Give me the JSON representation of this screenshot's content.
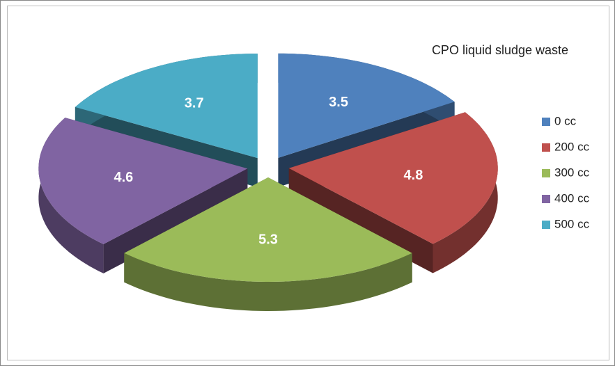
{
  "chart_data": {
    "type": "pie",
    "title": "CPO liquid sludge waste",
    "categories": [
      "0 cc",
      "200 cc",
      "300 cc",
      "400 cc",
      "500 cc"
    ],
    "values": [
      3.5,
      4.8,
      5.3,
      4.6,
      3.7
    ],
    "colors": [
      "#4f81bd",
      "#c0504d",
      "#9bbb59",
      "#8064a2",
      "#4bacc6"
    ],
    "legend": "right",
    "exploded": true,
    "three_d": true
  }
}
